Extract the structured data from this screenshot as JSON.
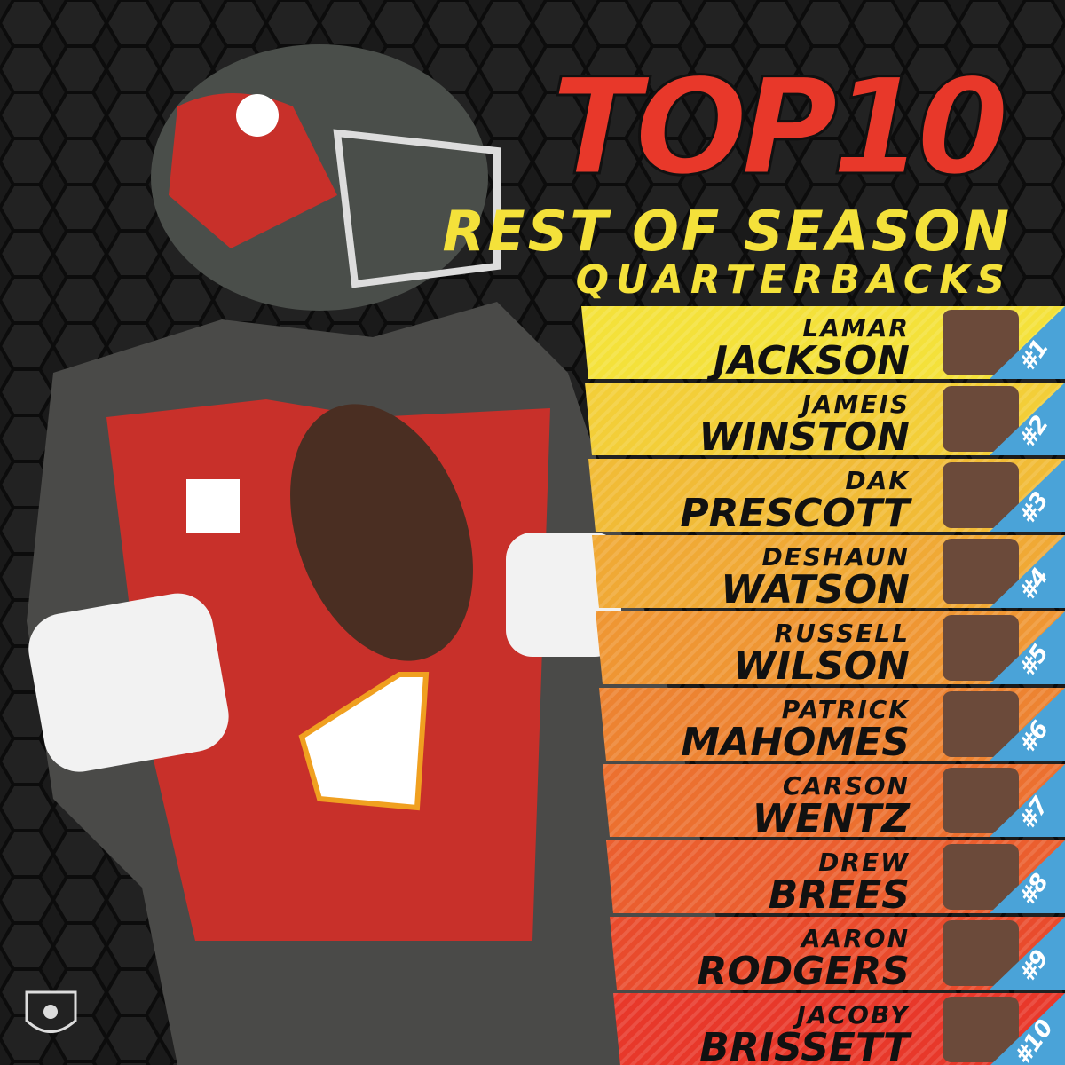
{
  "header": {
    "title": "TOP10",
    "subtitle": "REST OF SEASON",
    "subtitle2": "QUARTERBACKS"
  },
  "rows": [
    {
      "first": "LAMAR",
      "last": "JACKSON",
      "rank": "#1"
    },
    {
      "first": "JAMEIS",
      "last": "WINSTON",
      "rank": "#2"
    },
    {
      "first": "DAK",
      "last": "PRESCOTT",
      "rank": "#3"
    },
    {
      "first": "DESHAUN",
      "last": "WATSON",
      "rank": "#4"
    },
    {
      "first": "RUSSELL",
      "last": "WILSON",
      "rank": "#5"
    },
    {
      "first": "PATRICK",
      "last": "MAHOMES",
      "rank": "#6"
    },
    {
      "first": "CARSON",
      "last": "WENTZ",
      "rank": "#7"
    },
    {
      "first": "DREW",
      "last": "BREES",
      "rank": "#8"
    },
    {
      "first": "AARON",
      "last": "RODGERS",
      "rank": "#9"
    },
    {
      "first": "JACOBY",
      "last": "BRISSETT",
      "rank": "#10"
    }
  ]
}
